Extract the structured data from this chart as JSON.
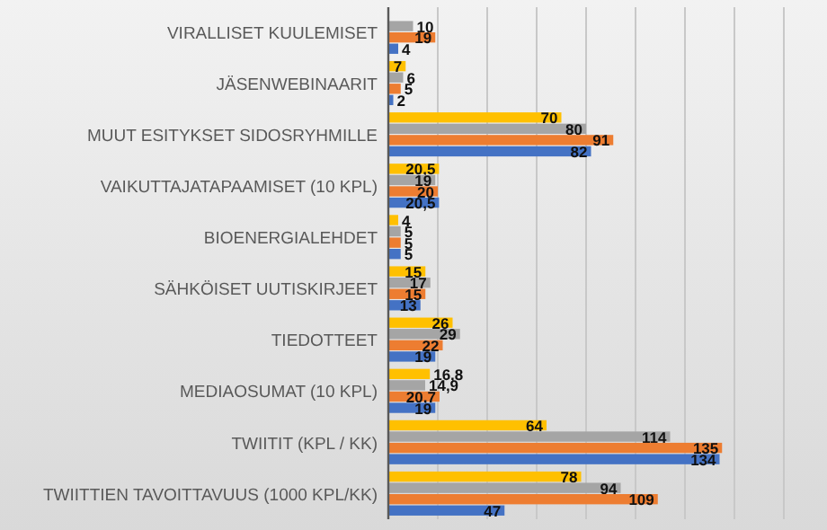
{
  "chart_data": {
    "type": "bar",
    "orientation": "horizontal",
    "categories": [
      "VIRALLISET KUULEMISET",
      "JÄSENWEBINAARIT",
      "MUUT ESITYKSET SIDOSRYHMILLE",
      "VAIKUTTAJATAPAAMISET (10 KPL)",
      "BIOENERGIALEHDET",
      "SÄHKÖISET UUTISKIRJEET",
      "TIEDOTTEET",
      "MEDIAOSUMAT (10 KPL)",
      "TWIITIT (KPL / KK)",
      "TWIITTIEN TAVOITTAVUUS (1000 KPL/KK)"
    ],
    "series": [
      {
        "color": "#ffc000",
        "values": [
          null,
          7,
          70,
          20.5,
          4,
          15,
          26,
          16.8,
          64,
          78
        ],
        "value_labels": [
          null,
          "7",
          "70",
          "20,5",
          "4",
          "15",
          "26",
          "16,8",
          "64",
          "78"
        ]
      },
      {
        "color": "#a5a5a5",
        "values": [
          10,
          6,
          80,
          19,
          5,
          17,
          29,
          14.9,
          114,
          94
        ],
        "value_labels": [
          "10",
          "6",
          "80",
          "19",
          "5",
          "17",
          "29",
          "14,9",
          "114",
          "94"
        ]
      },
      {
        "color": "#ed7d31",
        "values": [
          19,
          5,
          91,
          20,
          5,
          15,
          22,
          20.7,
          135,
          109
        ],
        "value_labels": [
          "19",
          "5",
          "91",
          "20",
          "5",
          "15",
          "22",
          "20,7",
          "135",
          "109"
        ]
      },
      {
        "color": "#4472c4",
        "values": [
          4,
          2,
          82,
          20.5,
          5,
          13,
          19,
          19,
          134,
          47
        ],
        "value_labels": [
          "4",
          "2",
          "82",
          "20,5",
          "5",
          "13",
          "19",
          "19",
          "134",
          "47"
        ]
      }
    ],
    "xlim": [
      0,
      160
    ],
    "xticks": [
      {
        "value": 0,
        "label": null
      },
      {
        "value": 20,
        "label": null
      },
      {
        "value": 40,
        "label": null
      },
      {
        "value": 60,
        "label": null
      },
      {
        "value": 80,
        "label": null
      },
      {
        "value": 100,
        "label": null
      },
      {
        "value": 120,
        "label": null
      },
      {
        "value": 140,
        "label": null
      },
      {
        "value": 160,
        "label": null
      }
    ],
    "grid": "x",
    "tick_labels": "y"
  }
}
